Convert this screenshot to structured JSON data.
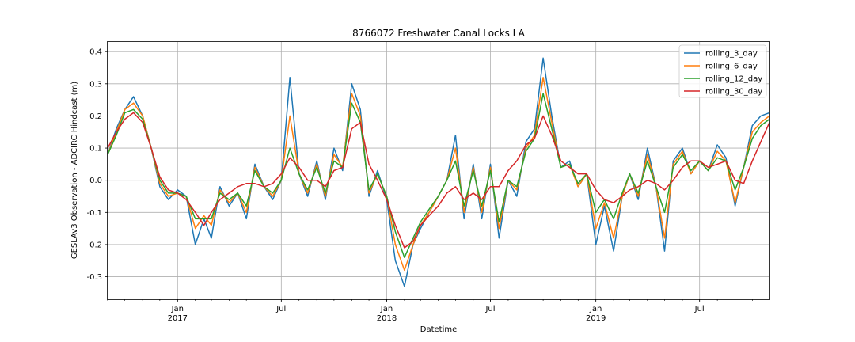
{
  "chart_data": {
    "type": "line",
    "title": "8766072 Freshwater Canal Locks LA",
    "xlabel": "Datetime",
    "ylabel": "GESLAv3 Observation - ADCIRC Hindcast (m)",
    "ylim": [
      -0.37,
      0.43
    ],
    "xlim": [
      "2016-09-01",
      "2019-10-31"
    ],
    "grid": true,
    "legend_position": "top-right",
    "yticks": [
      -0.3,
      -0.2,
      -0.1,
      0.0,
      0.1,
      0.2,
      0.3,
      0.4
    ],
    "ytick_labels": [
      "-0.3",
      "-0.2",
      "-0.1",
      "0.0",
      "0.1",
      "0.2",
      "0.3",
      "0.4"
    ],
    "xticks_major": [
      {
        "date": "2017-01-01",
        "label": "Jan",
        "year": "2017"
      },
      {
        "date": "2017-07-01",
        "label": "Jul",
        "year": ""
      },
      {
        "date": "2018-01-01",
        "label": "Jan",
        "year": "2018"
      },
      {
        "date": "2018-07-01",
        "label": "Jul",
        "year": ""
      },
      {
        "date": "2019-01-01",
        "label": "Jan",
        "year": "2019"
      },
      {
        "date": "2019-07-01",
        "label": "Jul",
        "year": ""
      }
    ],
    "x": [
      "2016-09-01",
      "2016-09-16",
      "2016-10-01",
      "2016-10-16",
      "2016-11-01",
      "2016-11-16",
      "2016-12-01",
      "2016-12-16",
      "2017-01-01",
      "2017-01-16",
      "2017-02-01",
      "2017-02-16",
      "2017-03-01",
      "2017-03-16",
      "2017-04-01",
      "2017-04-16",
      "2017-05-01",
      "2017-05-16",
      "2017-06-01",
      "2017-06-16",
      "2017-07-01",
      "2017-07-16",
      "2017-08-01",
      "2017-08-16",
      "2017-09-01",
      "2017-09-16",
      "2017-10-01",
      "2017-10-16",
      "2017-11-01",
      "2017-11-16",
      "2017-12-01",
      "2017-12-16",
      "2018-01-01",
      "2018-01-16",
      "2018-02-01",
      "2018-02-16",
      "2018-03-01",
      "2018-03-16",
      "2018-04-01",
      "2018-04-16",
      "2018-05-01",
      "2018-05-16",
      "2018-06-01",
      "2018-06-16",
      "2018-07-01",
      "2018-07-16",
      "2018-08-01",
      "2018-08-16",
      "2018-09-01",
      "2018-09-16",
      "2018-10-01",
      "2018-10-16",
      "2018-11-01",
      "2018-11-16",
      "2018-12-01",
      "2018-12-16",
      "2019-01-01",
      "2019-01-16",
      "2019-02-01",
      "2019-02-16",
      "2019-03-01",
      "2019-03-16",
      "2019-04-01",
      "2019-04-16",
      "2019-05-01",
      "2019-05-16",
      "2019-06-01",
      "2019-06-16",
      "2019-07-01",
      "2019-07-16",
      "2019-08-01",
      "2019-08-16",
      "2019-09-01",
      "2019-09-16",
      "2019-10-01",
      "2019-10-16",
      "2019-10-31"
    ],
    "series": [
      {
        "name": "rolling_3_day",
        "color": "#1f77b4",
        "values": [
          0.08,
          0.16,
          0.22,
          0.26,
          0.2,
          0.1,
          -0.02,
          -0.06,
          -0.03,
          -0.05,
          -0.2,
          -0.12,
          -0.18,
          -0.02,
          -0.08,
          -0.04,
          -0.12,
          0.05,
          -0.02,
          -0.06,
          0.0,
          0.32,
          0.02,
          -0.05,
          0.06,
          -0.06,
          0.1,
          0.03,
          0.3,
          0.22,
          -0.05,
          0.03,
          -0.06,
          -0.25,
          -0.33,
          -0.2,
          -0.15,
          -0.1,
          -0.05,
          0.0,
          0.14,
          -0.12,
          0.05,
          -0.12,
          0.05,
          -0.18,
          0.0,
          -0.05,
          0.12,
          0.16,
          0.38,
          0.2,
          0.04,
          0.06,
          -0.02,
          0.02,
          -0.2,
          -0.08,
          -0.22,
          -0.05,
          0.02,
          -0.06,
          0.1,
          -0.02,
          -0.22,
          0.06,
          0.1,
          0.02,
          0.06,
          0.03,
          0.11,
          0.07,
          -0.08,
          0.04,
          0.17,
          0.2,
          0.21
        ]
      },
      {
        "name": "rolling_6_day",
        "color": "#ff7f0e",
        "values": [
          0.08,
          0.15,
          0.22,
          0.24,
          0.2,
          0.1,
          -0.01,
          -0.05,
          -0.04,
          -0.05,
          -0.15,
          -0.11,
          -0.14,
          -0.03,
          -0.07,
          -0.04,
          -0.1,
          0.04,
          -0.02,
          -0.05,
          0.0,
          0.2,
          0.02,
          -0.04,
          0.05,
          -0.05,
          0.08,
          0.04,
          0.27,
          0.2,
          -0.04,
          0.02,
          -0.05,
          -0.2,
          -0.28,
          -0.2,
          -0.14,
          -0.1,
          -0.05,
          0.0,
          0.1,
          -0.1,
          0.04,
          -0.1,
          0.04,
          -0.15,
          0.0,
          -0.03,
          0.1,
          0.14,
          0.32,
          0.18,
          0.04,
          0.05,
          -0.02,
          0.02,
          -0.15,
          -0.07,
          -0.18,
          -0.05,
          0.02,
          -0.05,
          0.08,
          -0.02,
          -0.18,
          0.05,
          0.09,
          0.02,
          0.06,
          0.03,
          0.09,
          0.06,
          -0.07,
          0.04,
          0.15,
          0.18,
          0.2
        ]
      },
      {
        "name": "rolling_12_day",
        "color": "#2ca02c",
        "values": [
          0.08,
          0.14,
          0.21,
          0.22,
          0.19,
          0.1,
          0.0,
          -0.04,
          -0.04,
          -0.05,
          -0.12,
          -0.12,
          -0.12,
          -0.04,
          -0.06,
          -0.04,
          -0.08,
          0.03,
          -0.02,
          -0.04,
          0.0,
          0.1,
          0.02,
          -0.03,
          0.04,
          -0.04,
          0.06,
          0.04,
          0.24,
          0.18,
          -0.03,
          0.02,
          -0.05,
          -0.16,
          -0.24,
          -0.18,
          -0.13,
          -0.09,
          -0.05,
          0.0,
          0.06,
          -0.08,
          0.03,
          -0.08,
          0.03,
          -0.13,
          0.0,
          -0.02,
          0.09,
          0.13,
          0.27,
          0.16,
          0.04,
          0.05,
          -0.01,
          0.02,
          -0.1,
          -0.06,
          -0.12,
          -0.04,
          0.02,
          -0.04,
          0.06,
          -0.02,
          -0.1,
          0.04,
          0.08,
          0.03,
          0.06,
          0.03,
          0.07,
          0.06,
          -0.03,
          0.04,
          0.13,
          0.17,
          0.19
        ]
      },
      {
        "name": "rolling_30_day",
        "color": "#d62728",
        "values": [
          0.1,
          0.15,
          0.19,
          0.21,
          0.18,
          0.1,
          0.01,
          -0.03,
          -0.04,
          -0.06,
          -0.1,
          -0.14,
          -0.1,
          -0.06,
          -0.04,
          -0.02,
          -0.01,
          -0.01,
          -0.02,
          -0.01,
          0.02,
          0.07,
          0.04,
          0.0,
          0.0,
          -0.02,
          0.03,
          0.04,
          0.16,
          0.18,
          0.05,
          0.0,
          -0.06,
          -0.14,
          -0.21,
          -0.19,
          -0.14,
          -0.11,
          -0.08,
          -0.04,
          -0.02,
          -0.06,
          -0.04,
          -0.06,
          -0.02,
          -0.02,
          0.03,
          0.06,
          0.11,
          0.13,
          0.2,
          0.14,
          0.06,
          0.04,
          0.02,
          0.02,
          -0.03,
          -0.06,
          -0.07,
          -0.05,
          -0.03,
          -0.02,
          0.0,
          -0.01,
          -0.03,
          0.0,
          0.04,
          0.06,
          0.06,
          0.04,
          0.05,
          0.06,
          0.0,
          -0.01,
          0.06,
          0.12,
          0.18
        ]
      }
    ]
  }
}
